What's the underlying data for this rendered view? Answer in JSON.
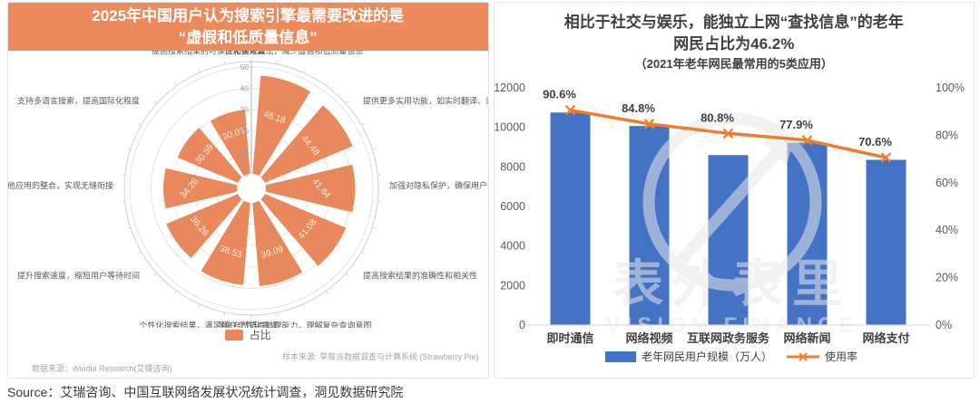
{
  "page": {
    "source_line": "Source：艾瑞咨询、中国互联网络发展状况统计调查，洞见数据研究院"
  },
  "left_panel": {
    "title_line1": "2025年中国用户认为搜索引擎最需要改进的是",
    "title_line2": "“虚假和低质量信息”",
    "banner_color": "#EC8A5C",
    "legend_label": "占比",
    "sample_source": "样本来源: 草莓派数据调查与计算系统 (Strawberry Pie)",
    "data_source": "数据来源：iMedia Research(艾媒咨询)"
  },
  "right_panel": {
    "title_line1": "相比于社交与娱乐，能独立上网“查找信息”的老年",
    "title_line2": "网民占比为46.2%",
    "subtitle": "（2021年老年网民最常用的5类应用）",
    "watermark_cn": "表外表里",
    "watermark_en": "VISION FINANCE"
  },
  "chart_data": [
    {
      "type": "bar",
      "variant": "nightingale-rose",
      "title": "2025年中国用户认为搜索引擎最需要改进的是“虚假和低质量信息”",
      "series_name": "占比",
      "color": "#E8885C",
      "categories": [
        "优化搜索算法，减少虚假和低质量信息",
        "提供更多实用功能，如实时翻译、语音搜",
        "加强对隐私保护，确保用户信息安全",
        "提高搜索结果的准确性和相关性",
        "强化自然语言处理能力，理解复杂查询意图",
        "个性化搜索结果，满足用户个性化需求",
        "提升搜索速度，缩短用户等待时间",
        "加强与其他应用的整合，实现无缝衔接",
        "支持多语言搜索，提高国际化程度",
        "提高搜索结果的可读性和美观度"
      ],
      "values": [
        46.18,
        44.48,
        41.64,
        41.08,
        39.09,
        38.53,
        36.26,
        34.28,
        30.59,
        30.03
      ],
      "radial_axis": {
        "min": 0,
        "max": 50,
        "ticks": [
          0,
          10,
          20,
          30,
          40,
          50
        ]
      },
      "grid": true,
      "legend_position": "bottom"
    },
    {
      "type": "bar",
      "variant": "bar-line-combo",
      "title": "相比于社交与娱乐，能独立上网“查找信息”的老年网民占比为46.2%",
      "subtitle": "（2021年老年网民最常用的5类应用）",
      "categories": [
        "即时通信",
        "网络视频",
        "互联网政务服务",
        "网络新闻",
        "网络支付"
      ],
      "series": [
        {
          "name": "老年网民用户规模（万人）",
          "type": "bar",
          "axis": "left",
          "color": "#4472C4",
          "values": [
            10750,
            10070,
            8600,
            9230,
            8360
          ]
        },
        {
          "name": "使用率",
          "type": "line",
          "axis": "right",
          "color": "#ED7D31",
          "marker": "x",
          "values": [
            90.6,
            84.8,
            80.8,
            77.9,
            70.6
          ],
          "labels": [
            "90.6%",
            "84.8%",
            "80.8%",
            "77.9%",
            "70.6%"
          ]
        }
      ],
      "left_axis": {
        "min": 0,
        "max": 12000,
        "ticks": [
          0,
          2000,
          4000,
          6000,
          8000,
          10000,
          12000
        ]
      },
      "right_axis": {
        "min": 0,
        "max": 100,
        "tick_labels": [
          "0%",
          "20%",
          "40%",
          "60%",
          "80%",
          "100%"
        ]
      },
      "grid": false,
      "legend_position": "bottom"
    }
  ]
}
